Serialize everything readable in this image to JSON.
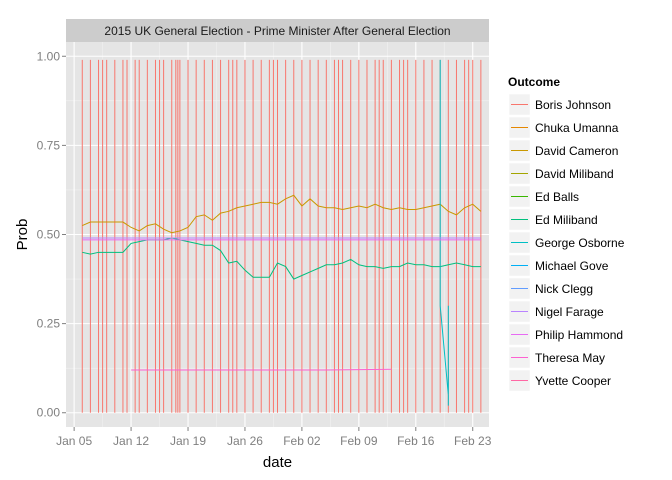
{
  "chart_data": {
    "type": "line",
    "title": "2015 UK General Election - Prime Minister After General Election",
    "xlabel": "date",
    "ylabel": "Prob",
    "xlim": [
      "2015-01-04",
      "2015-02-25"
    ],
    "ylim": [
      -0.04,
      1.04
    ],
    "x_ticks": [
      {
        "date": "2015-01-05",
        "label": "Jan 05"
      },
      {
        "date": "2015-01-12",
        "label": "Jan 12"
      },
      {
        "date": "2015-01-19",
        "label": "Jan 19"
      },
      {
        "date": "2015-01-26",
        "label": "Jan 26"
      },
      {
        "date": "2015-02-02",
        "label": "Feb 02"
      },
      {
        "date": "2015-02-09",
        "label": "Feb 09"
      },
      {
        "date": "2015-02-16",
        "label": "Feb 16"
      },
      {
        "date": "2015-02-23",
        "label": "Feb 23"
      }
    ],
    "y_ticks": [
      {
        "value": 0,
        "label": "0.00"
      },
      {
        "value": 0.25,
        "label": "0.25"
      },
      {
        "value": 0.5,
        "label": "0.50"
      },
      {
        "value": 0.75,
        "label": "0.75"
      },
      {
        "value": 1,
        "label": "1.00"
      }
    ],
    "grid": true,
    "legend_title": "Outcome",
    "legend_position": "right",
    "series": [
      {
        "name": "Boris Johnson",
        "color": "#F8766D",
        "points": []
      },
      {
        "name": "Chuka Umanna",
        "color": "#E58700",
        "points": []
      },
      {
        "name": "David Cameron",
        "color": "#C99800",
        "points": [
          [
            "2015-01-06",
            0.525
          ],
          [
            "2015-01-07",
            0.535
          ],
          [
            "2015-01-08",
            0.535
          ],
          [
            "2015-01-09",
            0.535
          ],
          [
            "2015-01-10",
            0.535
          ],
          [
            "2015-01-11",
            0.535
          ],
          [
            "2015-01-12",
            0.52
          ],
          [
            "2015-01-13",
            0.51
          ],
          [
            "2015-01-14",
            0.525
          ],
          [
            "2015-01-15",
            0.53
          ],
          [
            "2015-01-16",
            0.515
          ],
          [
            "2015-01-17",
            0.505
          ],
          [
            "2015-01-18",
            0.51
          ],
          [
            "2015-01-19",
            0.52
          ],
          [
            "2015-01-20",
            0.55
          ],
          [
            "2015-01-21",
            0.555
          ],
          [
            "2015-01-22",
            0.54
          ],
          [
            "2015-01-23",
            0.56
          ],
          [
            "2015-01-24",
            0.565
          ],
          [
            "2015-01-25",
            0.575
          ],
          [
            "2015-01-26",
            0.58
          ],
          [
            "2015-01-27",
            0.585
          ],
          [
            "2015-01-28",
            0.59
          ],
          [
            "2015-01-29",
            0.59
          ],
          [
            "2015-01-30",
            0.585
          ],
          [
            "2015-01-31",
            0.6
          ],
          [
            "2015-02-01",
            0.61
          ],
          [
            "2015-02-02",
            0.58
          ],
          [
            "2015-02-03",
            0.6
          ],
          [
            "2015-02-04",
            0.58
          ],
          [
            "2015-02-05",
            0.575
          ],
          [
            "2015-02-06",
            0.575
          ],
          [
            "2015-02-07",
            0.57
          ],
          [
            "2015-02-08",
            0.575
          ],
          [
            "2015-02-09",
            0.58
          ],
          [
            "2015-02-10",
            0.575
          ],
          [
            "2015-02-11",
            0.585
          ],
          [
            "2015-02-12",
            0.575
          ],
          [
            "2015-02-13",
            0.57
          ],
          [
            "2015-02-14",
            0.575
          ],
          [
            "2015-02-15",
            0.57
          ],
          [
            "2015-02-16",
            0.57
          ],
          [
            "2015-02-17",
            0.575
          ],
          [
            "2015-02-18",
            0.58
          ],
          [
            "2015-02-19",
            0.585
          ],
          [
            "2015-02-20",
            0.565
          ],
          [
            "2015-02-21",
            0.555
          ],
          [
            "2015-02-22",
            0.575
          ],
          [
            "2015-02-23",
            0.585
          ],
          [
            "2015-02-24",
            0.565
          ]
        ]
      },
      {
        "name": "David Miliband",
        "color": "#A3A500",
        "points": []
      },
      {
        "name": "Ed Balls",
        "color": "#39B600",
        "points": []
      },
      {
        "name": "Ed Miliband",
        "color": "#00BF7D",
        "points": [
          [
            "2015-01-06",
            0.45
          ],
          [
            "2015-01-07",
            0.445
          ],
          [
            "2015-01-08",
            0.45
          ],
          [
            "2015-01-09",
            0.45
          ],
          [
            "2015-01-10",
            0.45
          ],
          [
            "2015-01-11",
            0.45
          ],
          [
            "2015-01-12",
            0.475
          ],
          [
            "2015-01-13",
            0.48
          ],
          [
            "2015-01-14",
            0.485
          ],
          [
            "2015-01-15",
            0.485
          ],
          [
            "2015-01-16",
            0.485
          ],
          [
            "2015-01-17",
            0.49
          ],
          [
            "2015-01-18",
            0.485
          ],
          [
            "2015-01-19",
            0.48
          ],
          [
            "2015-01-20",
            0.475
          ],
          [
            "2015-01-21",
            0.47
          ],
          [
            "2015-01-22",
            0.47
          ],
          [
            "2015-01-23",
            0.455
          ],
          [
            "2015-01-24",
            0.42
          ],
          [
            "2015-01-25",
            0.425
          ],
          [
            "2015-01-26",
            0.4
          ],
          [
            "2015-01-27",
            0.38
          ],
          [
            "2015-01-28",
            0.38
          ],
          [
            "2015-01-29",
            0.38
          ],
          [
            "2015-01-30",
            0.42
          ],
          [
            "2015-01-31",
            0.41
          ],
          [
            "2015-02-01",
            0.375
          ],
          [
            "2015-02-02",
            0.385
          ],
          [
            "2015-02-03",
            0.395
          ],
          [
            "2015-02-04",
            0.405
          ],
          [
            "2015-02-05",
            0.415
          ],
          [
            "2015-02-06",
            0.415
          ],
          [
            "2015-02-07",
            0.42
          ],
          [
            "2015-02-08",
            0.43
          ],
          [
            "2015-02-09",
            0.415
          ],
          [
            "2015-02-10",
            0.41
          ],
          [
            "2015-02-11",
            0.41
          ],
          [
            "2015-02-12",
            0.405
          ],
          [
            "2015-02-13",
            0.41
          ],
          [
            "2015-02-14",
            0.41
          ],
          [
            "2015-02-15",
            0.42
          ],
          [
            "2015-02-16",
            0.415
          ],
          [
            "2015-02-17",
            0.415
          ],
          [
            "2015-02-18",
            0.41
          ],
          [
            "2015-02-19",
            0.41
          ],
          [
            "2015-02-20",
            0.415
          ],
          [
            "2015-02-21",
            0.42
          ],
          [
            "2015-02-22",
            0.415
          ],
          [
            "2015-02-23",
            0.41
          ],
          [
            "2015-02-24",
            0.41
          ]
        ]
      },
      {
        "name": "George Osborne",
        "color": "#00BFC4",
        "points": [
          [
            "2015-02-19",
            0.99
          ],
          [
            "2015-02-19",
            0.3
          ],
          [
            "2015-02-20",
            0.05
          ],
          [
            "2015-02-20",
            0.3
          ],
          [
            "2015-02-20",
            0.02
          ]
        ]
      },
      {
        "name": "Michael Gove",
        "color": "#00B0F6",
        "points": []
      },
      {
        "name": "Nick Clegg",
        "color": "#619CFF",
        "points": []
      },
      {
        "name": "Nigel Farage",
        "color": "#B983FF",
        "points": [
          [
            "2015-01-06",
            0.49
          ],
          [
            "2015-02-24",
            0.49
          ]
        ]
      },
      {
        "name": "Philip Hammond",
        "color": "#E76BF3",
        "points": [
          [
            "2015-01-06",
            0.485
          ],
          [
            "2015-02-24",
            0.485
          ]
        ]
      },
      {
        "name": "Theresa May",
        "color": "#FD61D1",
        "points": [
          [
            "2015-01-12",
            0.12
          ],
          [
            "2015-01-20",
            0.12
          ],
          [
            "2015-01-28",
            0.12
          ],
          [
            "2015-02-05",
            0.12
          ],
          [
            "2015-02-13",
            0.122
          ]
        ]
      },
      {
        "name": "Yvette Cooper",
        "color": "#FF67A4",
        "points": []
      }
    ],
    "spikes": {
      "series": "Boris Johnson",
      "color": "#F8766D",
      "low": 0,
      "high": 0.99,
      "dates": [
        "2015-01-06",
        "2015-01-07",
        "2015-01-08",
        "2015-01-08T12",
        "2015-01-09",
        "2015-01-10",
        "2015-01-11",
        "2015-01-11T12",
        "2015-01-12T12",
        "2015-01-13",
        "2015-01-14",
        "2015-01-15",
        "2015-01-15T12",
        "2015-01-16",
        "2015-01-17",
        "2015-01-17T12",
        "2015-01-17T18",
        "2015-01-18",
        "2015-01-19",
        "2015-01-20",
        "2015-01-21",
        "2015-01-22",
        "2015-01-23",
        "2015-01-24",
        "2015-01-24T12",
        "2015-01-25",
        "2015-01-26",
        "2015-01-27",
        "2015-01-28",
        "2015-01-29",
        "2015-01-29T12",
        "2015-01-30",
        "2015-01-31",
        "2015-02-01",
        "2015-02-02",
        "2015-02-03",
        "2015-02-04",
        "2015-02-05",
        "2015-02-06",
        "2015-02-06T12",
        "2015-02-07",
        "2015-02-08",
        "2015-02-09",
        "2015-02-10",
        "2015-02-11",
        "2015-02-11T12",
        "2015-02-12",
        "2015-02-13",
        "2015-02-14",
        "2015-02-14T12",
        "2015-02-15",
        "2015-02-16",
        "2015-02-17",
        "2015-02-18",
        "2015-02-19",
        "2015-02-20",
        "2015-02-21",
        "2015-02-22",
        "2015-02-22T12",
        "2015-02-23",
        "2015-02-24"
      ]
    }
  }
}
